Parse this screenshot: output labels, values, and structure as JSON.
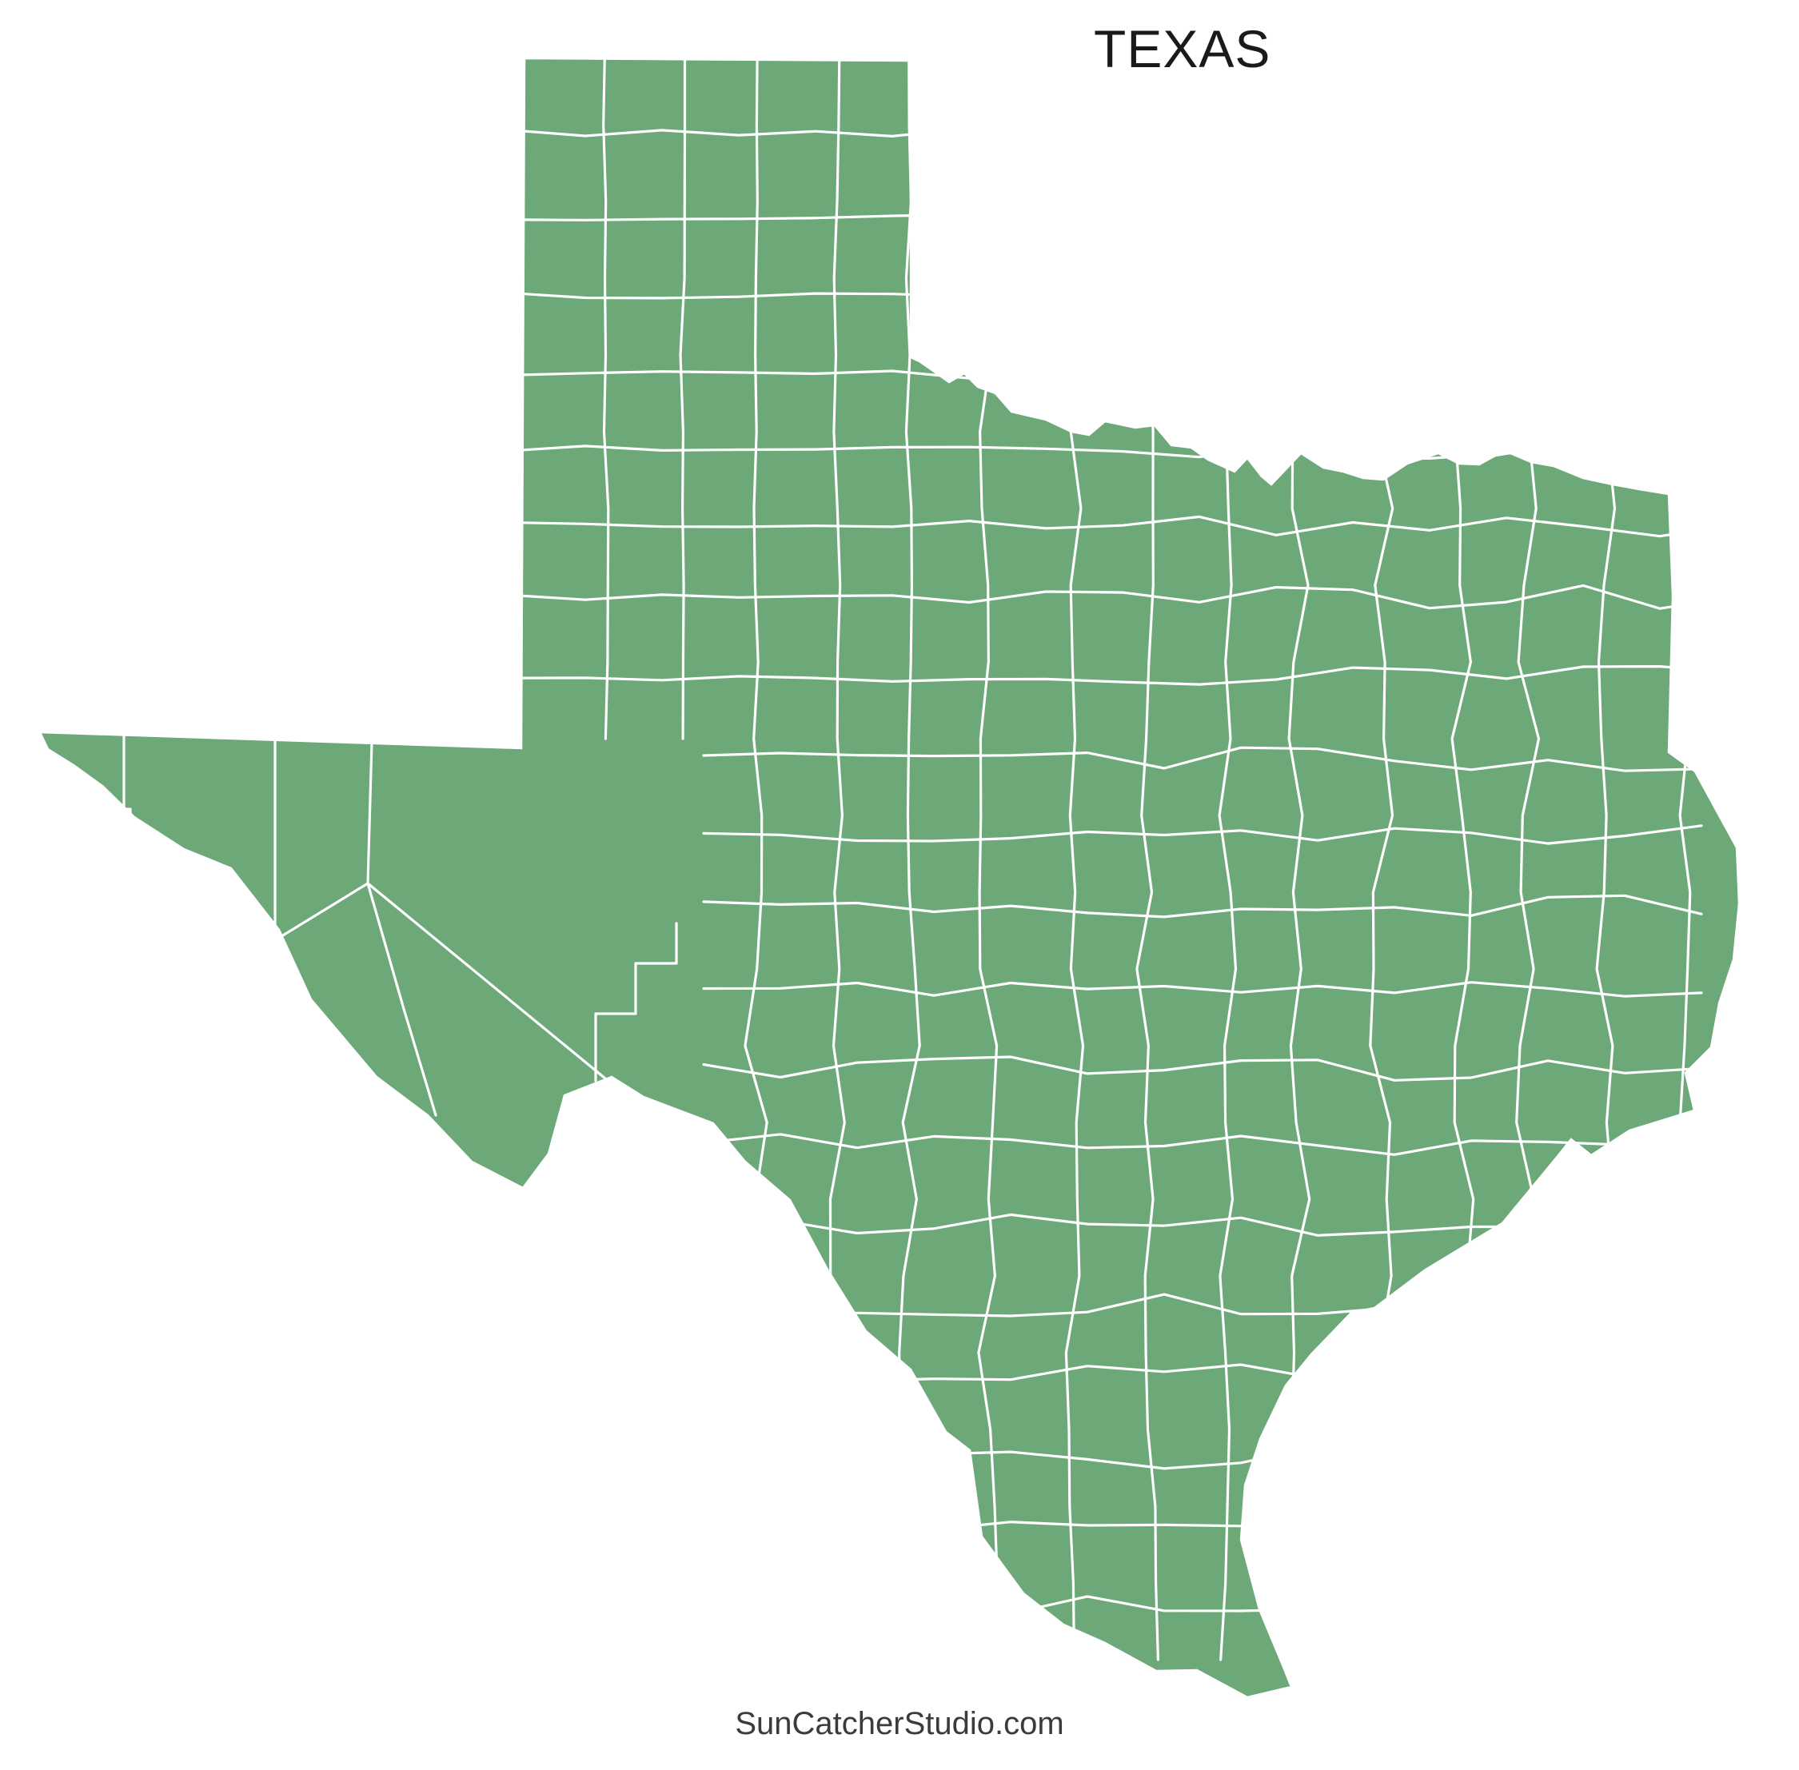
{
  "page": {
    "title": "TEXAS",
    "watermark": "SunCatcherStudio.com"
  },
  "map": {
    "state_label": "TEXAS",
    "kind": "state county-outline map",
    "colors": {
      "land": "#6CA878",
      "county_border": "#FFFFFF",
      "background": "#FFFFFF",
      "title_text": "#1A1A1A",
      "watermark_text": "#3B3B3B"
    }
  }
}
